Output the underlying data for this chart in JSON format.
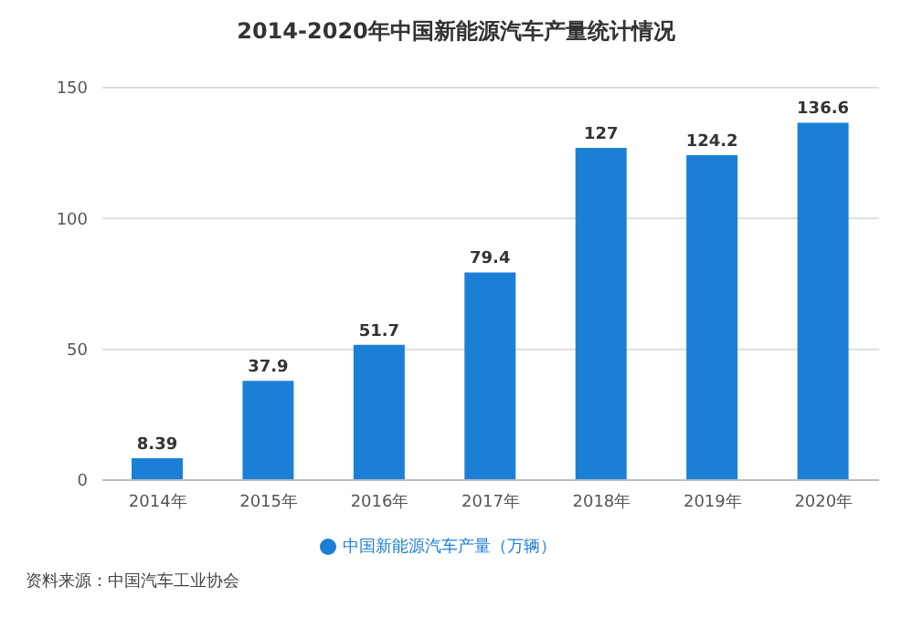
{
  "chart_data": {
    "type": "bar",
    "title": "2014-2020年中国新能源汽车产量统计情况",
    "categories": [
      "2014年",
      "2015年",
      "2016年",
      "2017年",
      "2018年",
      "2019年",
      "2020年"
    ],
    "series": [
      {
        "name": "中国新能源汽车产量（万辆）",
        "color": "#1c7fd6",
        "values": [
          8.39,
          37.9,
          51.7,
          79.4,
          127,
          124.2,
          136.6
        ]
      }
    ],
    "ylim": [
      0,
      150
    ],
    "yticks": [
      0,
      50,
      100,
      150
    ],
    "grid": "y",
    "legend": "bottom",
    "data_labels": true,
    "annotations": [
      "资料来源：中国汽车工业协会"
    ]
  }
}
